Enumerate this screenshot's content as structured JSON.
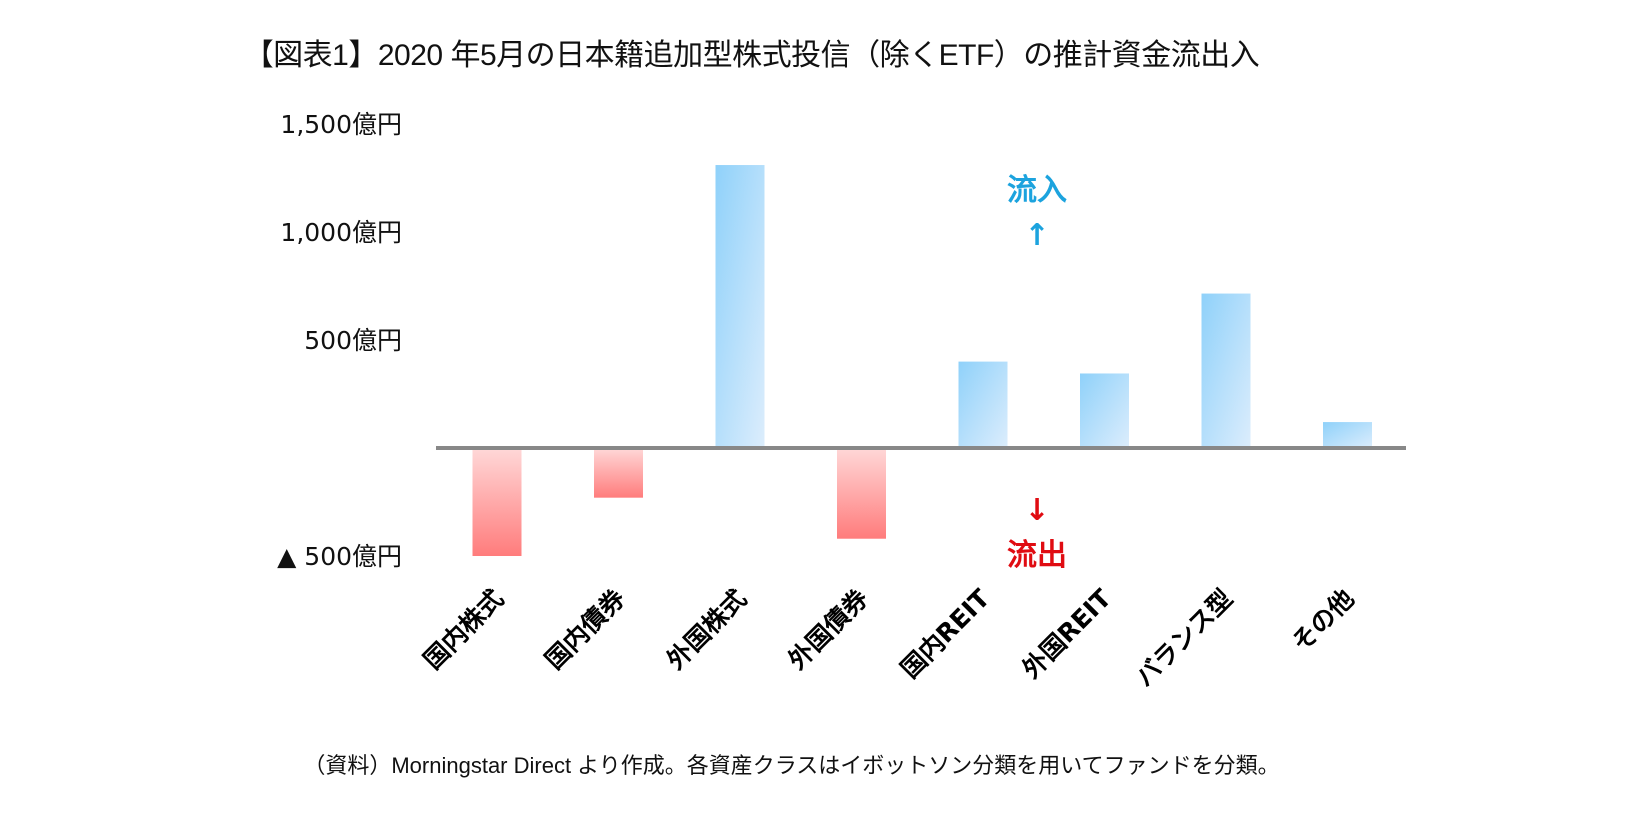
{
  "title": "【図表1】2020 年5月の日本籍追加型株式投信（除くETF）の推計資金流出入",
  "footnote": "（資料）Morningstar Direct より作成。各資産クラスはイボットソン分類を用いてファンドを分類。",
  "colors": {
    "inflow_bar_dark": "#8fd1fa",
    "inflow_bar_light": "#dcedfc",
    "outflow_bar_dark": "#ff7c7c",
    "outflow_bar_light": "#ffd8d8",
    "axis": "#888888",
    "inflow_text": "#1ca3de",
    "outflow_text": "#e00c12"
  },
  "annotations": {
    "inflow_label": "流入",
    "inflow_arrow": "↑",
    "outflow_label": "流出",
    "outflow_arrow": "↓"
  },
  "chart_data": {
    "type": "bar",
    "title": "【図表1】2020 年5月の日本籍追加型株式投信（除くETF）の推計資金流出入",
    "xlabel": "",
    "ylabel": "",
    "unit": "億円",
    "categories": [
      "国内株式",
      "国内債券",
      "外国株式",
      "外国債券",
      "国内REIT",
      "外国REIT",
      "バランス型",
      "その他"
    ],
    "values": [
      -500,
      -230,
      1310,
      -420,
      400,
      345,
      715,
      120
    ],
    "ylim": [
      -500,
      1500
    ],
    "yticks": [
      {
        "value": 1500,
        "label": "1,500億円"
      },
      {
        "value": 1000,
        "label": "1,000億円"
      },
      {
        "value": 500,
        "label": "500億円"
      },
      {
        "value": -500,
        "label": "▲ 500億円"
      }
    ],
    "grid": false,
    "legend": "none"
  }
}
